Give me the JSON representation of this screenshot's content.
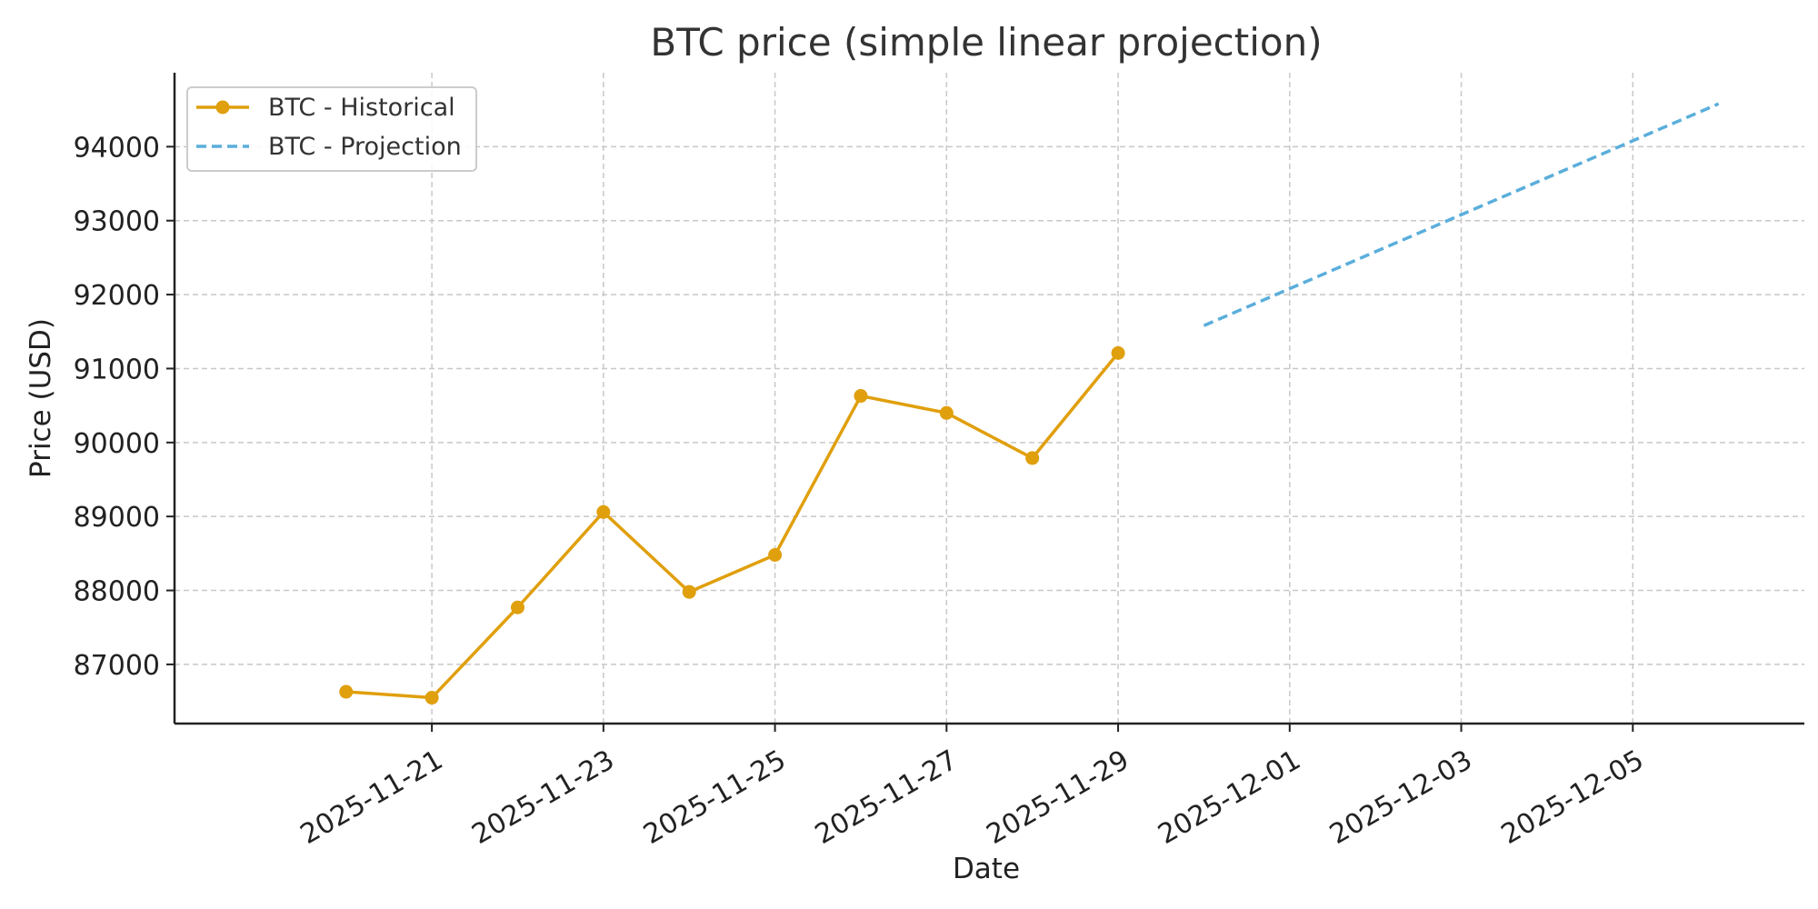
{
  "chart_data": {
    "type": "line",
    "title": "BTC price (simple linear projection)",
    "xlabel": "Date",
    "ylabel": "Price (USD)",
    "x_type": "date",
    "xlim": [
      "2025-11-18",
      "2025-12-07"
    ],
    "ylim": [
      86200,
      95000
    ],
    "x_ticks": [
      "2025-11-21",
      "2025-11-23",
      "2025-11-25",
      "2025-11-27",
      "2025-11-29",
      "2025-12-01",
      "2025-12-03",
      "2025-12-05"
    ],
    "y_ticks": [
      87000,
      88000,
      89000,
      90000,
      91000,
      92000,
      93000,
      94000
    ],
    "grid": true,
    "legend_position": "top-left",
    "series": [
      {
        "name": "BTC - Historical",
        "style": "solid-with-markers",
        "color": "#e09f0c",
        "points": [
          {
            "x": "2025-11-20",
            "y": 86630
          },
          {
            "x": "2025-11-21",
            "y": 86550
          },
          {
            "x": "2025-11-22",
            "y": 87770
          },
          {
            "x": "2025-11-23",
            "y": 89060
          },
          {
            "x": "2025-11-24",
            "y": 87980
          },
          {
            "x": "2025-11-25",
            "y": 88480
          },
          {
            "x": "2025-11-26",
            "y": 90630
          },
          {
            "x": "2025-11-27",
            "y": 90400
          },
          {
            "x": "2025-11-28",
            "y": 89790
          },
          {
            "x": "2025-11-29",
            "y": 91210
          }
        ]
      },
      {
        "name": "BTC - Projection",
        "style": "dashed",
        "color": "#5aaedb",
        "points": [
          {
            "x": "2025-11-30",
            "y": 91580
          },
          {
            "x": "2025-12-01",
            "y": 92080
          },
          {
            "x": "2025-12-02",
            "y": 92580
          },
          {
            "x": "2025-12-03",
            "y": 93080
          },
          {
            "x": "2025-12-04",
            "y": 93580
          },
          {
            "x": "2025-12-05",
            "y": 94080
          },
          {
            "x": "2025-12-06",
            "y": 94580
          }
        ]
      }
    ]
  }
}
